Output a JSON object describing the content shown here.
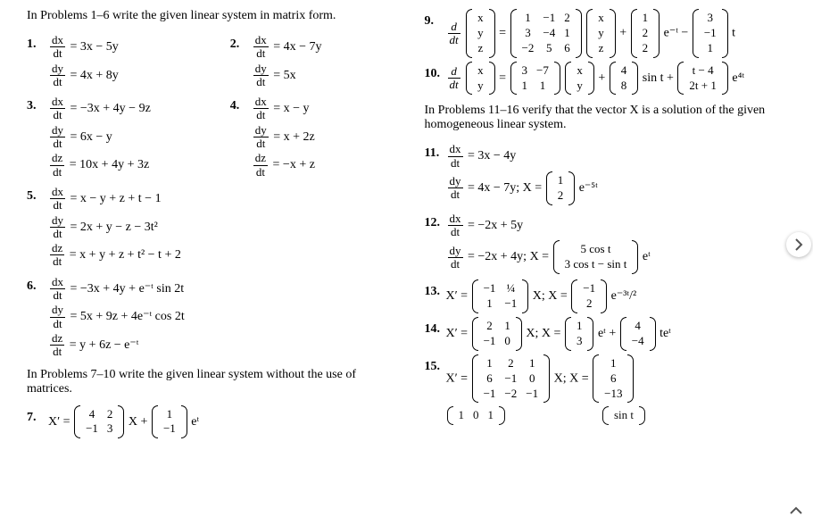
{
  "intro1": "In Problems 1–6 write the given linear system in matrix form.",
  "p1": {
    "n": "1.",
    "a": "= 3x − 5y",
    "b": "= 4x + 8y"
  },
  "p2": {
    "n": "2.",
    "a": "= 4x − 7y",
    "b": "= 5x"
  },
  "p3": {
    "n": "3.",
    "a": "= −3x + 4y − 9z",
    "b": "= 6x − y",
    "c": "= 10x + 4y + 3z"
  },
  "p4": {
    "n": "4.",
    "a": "= x − y",
    "b": "= x + 2z",
    "c": "= −x + z"
  },
  "p5": {
    "n": "5.",
    "a": "= x − y + z + t − 1",
    "b": "= 2x + y − z − 3t²",
    "c": "= x + y + z + t² − t + 2"
  },
  "p6": {
    "n": "6.",
    "a": "= −3x + 4y + e⁻ᵗ sin 2t",
    "b": "= 5x + 9z + 4e⁻ᵗ cos 2t",
    "c": "= y + 6z − e⁻ᵗ"
  },
  "intro2": "In Problems 7–10 write the given linear system without the use of matrices.",
  "p7": {
    "n": "7.",
    "label": "X′ =",
    "m1": [
      [
        "4",
        "2"
      ],
      [
        "−1",
        "3"
      ]
    ],
    "mid": "X +",
    "m2": [
      [
        "1"
      ],
      [
        "−1"
      ]
    ],
    "tail": "eᵗ"
  },
  "p9": {
    "n": "9.",
    "lead": " ",
    "m1": [
      [
        "1",
        "−1",
        "2"
      ],
      [
        "3",
        "−4",
        "1"
      ],
      [
        "−2",
        "5",
        "6"
      ]
    ],
    "v": [
      [
        "x"
      ],
      [
        "y"
      ],
      [
        "z"
      ]
    ],
    "plus": " + ",
    "m2": [
      [
        "1"
      ],
      [
        "2"
      ],
      [
        "2"
      ]
    ],
    "mid2": "e⁻ᵗ − ",
    "m3": [
      [
        "3"
      ],
      [
        "−1"
      ],
      [
        "1"
      ]
    ],
    "tail": "t"
  },
  "p10": {
    "n": "10.",
    "m1": [
      [
        "3",
        "−7"
      ],
      [
        "1",
        "1"
      ]
    ],
    "v": [
      [
        "x"
      ],
      [
        "y"
      ]
    ],
    "plus": " + ",
    "m2": [
      [
        "4"
      ],
      [
        "8"
      ]
    ],
    "mid": " sin t + ",
    "m3": [
      [
        "t − 4"
      ],
      [
        "2t + 1"
      ]
    ],
    "tail": "e⁴ᵗ"
  },
  "intro3": "In Problems 11–16 verify that the vector X is a solution of the given homogeneous linear system.",
  "p11": {
    "n": "11.",
    "a": "= 3x − 4y",
    "b": "= 4x − 7y;   X =",
    "m": [
      [
        "1"
      ],
      [
        "2"
      ]
    ],
    "tail": "e⁻⁵ᵗ"
  },
  "p12": {
    "n": "12.",
    "a": "= −2x + 5y",
    "b": "= −2x + 4y;   X =",
    "m": [
      [
        "5 cos t"
      ],
      [
        "3 cos t − sin t"
      ]
    ],
    "tail": "eᵗ"
  },
  "p13": {
    "n": "13.",
    "label": "X′ =",
    "m1": [
      [
        "−1",
        "¼"
      ],
      [
        "1",
        "−1"
      ]
    ],
    "mid": "X;   X =",
    "m2": [
      [
        "−1"
      ],
      [
        "2"
      ]
    ],
    "tail": "e⁻³ᵗ/²"
  },
  "p14": {
    "n": "14.",
    "label": "X′ =",
    "m1": [
      [
        "2",
        "1"
      ],
      [
        "−1",
        "0"
      ]
    ],
    "mid": "X;   X =",
    "m2": [
      [
        "1"
      ],
      [
        "3"
      ]
    ],
    "mid2": "eᵗ + ",
    "m3": [
      [
        "4"
      ],
      [
        "−4"
      ]
    ],
    "tail": "teᵗ"
  },
  "p15": {
    "n": "15.",
    "label": "X′ =",
    "m1": [
      [
        "1",
        "2",
        "1"
      ],
      [
        "6",
        "−1",
        "0"
      ],
      [
        "−1",
        "−2",
        "−1"
      ]
    ],
    "mid": "X;   X =",
    "m2": [
      [
        "1"
      ],
      [
        "6"
      ],
      [
        "−13"
      ]
    ]
  },
  "p16": {
    "m1": [
      [
        "1",
        "0",
        "1"
      ]
    ],
    "m2": [
      [
        "sin t"
      ]
    ]
  },
  "dfrac": {
    "dx": "dx",
    "dy": "dy",
    "dz": "dz",
    "dt": "dt",
    "d": "d"
  }
}
